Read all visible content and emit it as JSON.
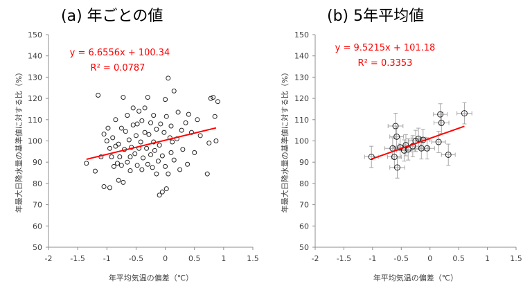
{
  "chart_data": [
    {
      "type": "scatter",
      "panel_title": "(a) 年ごとの値",
      "xlabel": "年平均気温の偏差（℃）",
      "ylabel": "年最大日降水量の基準値に対する比（%）",
      "xlim": [
        -2,
        1.5
      ],
      "ylim": [
        50,
        150
      ],
      "xticks": [
        "-2",
        "-1.5",
        "-1",
        "-0.5",
        "0",
        "0.5",
        "1",
        "1.5"
      ],
      "yticks": [
        "50",
        "60",
        "70",
        "80",
        "90",
        "100",
        "110",
        "120",
        "130",
        "140",
        "150"
      ],
      "grid": false,
      "equation": "y = 6.6556x + 100.34",
      "r2": "R² = 0.0787",
      "trendline": {
        "slope": 6.6556,
        "intercept": 100.34,
        "x_range": [
          -1.35,
          0.87
        ],
        "color": "#ff0000"
      },
      "marker": "open-circle",
      "points": [
        [
          -1.35,
          89.5
        ],
        [
          -1.2,
          85.8
        ],
        [
          -1.15,
          121.5
        ],
        [
          -1.1,
          92.5
        ],
        [
          -1.05,
          78.5
        ],
        [
          -1.05,
          103.2
        ],
        [
          -1.0,
          100.0
        ],
        [
          -0.98,
          106.0
        ],
        [
          -0.95,
          96.5
        ],
        [
          -0.95,
          78.0
        ],
        [
          -0.92,
          92.5
        ],
        [
          -0.9,
          101.5
        ],
        [
          -0.88,
          88.0
        ],
        [
          -0.85,
          97.5
        ],
        [
          -0.85,
          110.0
        ],
        [
          -0.82,
          89.5
        ],
        [
          -0.8,
          98.5
        ],
        [
          -0.8,
          81.5
        ],
        [
          -0.78,
          92.5
        ],
        [
          -0.75,
          88.5
        ],
        [
          -0.75,
          106.0
        ],
        [
          -0.72,
          120.5
        ],
        [
          -0.72,
          80.5
        ],
        [
          -0.7,
          96.0
        ],
        [
          -0.68,
          104.5
        ],
        [
          -0.65,
          90.0
        ],
        [
          -0.65,
          112.0
        ],
        [
          -0.62,
          100.5
        ],
        [
          -0.6,
          92.5
        ],
        [
          -0.6,
          86.0
        ],
        [
          -0.58,
          97.0
        ],
        [
          -0.55,
          107.5
        ],
        [
          -0.55,
          115.5
        ],
        [
          -0.52,
          94.0
        ],
        [
          -0.5,
          102.5
        ],
        [
          -0.48,
          88.5
        ],
        [
          -0.48,
          108.0
        ],
        [
          -0.45,
          96.5
        ],
        [
          -0.45,
          114.0
        ],
        [
          -0.42,
          99.5
        ],
        [
          -0.4,
          86.5
        ],
        [
          -0.4,
          109.5
        ],
        [
          -0.38,
          92.0
        ],
        [
          -0.35,
          104.0
        ],
        [
          -0.35,
          115.5
        ],
        [
          -0.32,
          96.5
        ],
        [
          -0.3,
          120.5
        ],
        [
          -0.3,
          89.0
        ],
        [
          -0.28,
          103.0
        ],
        [
          -0.25,
          93.5
        ],
        [
          -0.25,
          108.5
        ],
        [
          -0.22,
          87.5
        ],
        [
          -0.2,
          99.5
        ],
        [
          -0.2,
          112.0
        ],
        [
          -0.18,
          95.5
        ],
        [
          -0.15,
          84.5
        ],
        [
          -0.15,
          105.5
        ],
        [
          -0.12,
          90.5
        ],
        [
          -0.1,
          74.5
        ],
        [
          -0.1,
          98.0
        ],
        [
          -0.08,
          108.0
        ],
        [
          -0.05,
          93.0
        ],
        [
          -0.05,
          76.0
        ],
        [
          -0.02,
          104.0
        ],
        [
          0.0,
          88.0
        ],
        [
          0.0,
          119.5
        ],
        [
          0.02,
          111.5
        ],
        [
          0.02,
          77.5
        ],
        [
          0.05,
          84.5
        ],
        [
          0.05,
          129.5
        ],
        [
          0.08,
          101.5
        ],
        [
          0.1,
          94.5
        ],
        [
          0.1,
          107.0
        ],
        [
          0.12,
          99.5
        ],
        [
          0.15,
          123.5
        ],
        [
          0.15,
          91.0
        ],
        [
          0.2,
          101.0
        ],
        [
          0.22,
          113.5
        ],
        [
          0.25,
          86.5
        ],
        [
          0.28,
          105.0
        ],
        [
          0.3,
          96.0
        ],
        [
          0.35,
          108.5
        ],
        [
          0.38,
          89.0
        ],
        [
          0.4,
          112.5
        ],
        [
          0.45,
          104.0
        ],
        [
          0.5,
          94.5
        ],
        [
          0.55,
          110.0
        ],
        [
          0.6,
          102.5
        ],
        [
          0.72,
          84.5
        ],
        [
          0.75,
          99.0
        ],
        [
          0.78,
          120.0
        ],
        [
          0.82,
          120.5
        ],
        [
          0.85,
          111.5
        ],
        [
          0.87,
          100.0
        ],
        [
          0.9,
          118.5
        ]
      ]
    },
    {
      "type": "scatter",
      "panel_title": "(b) 5年平均値",
      "xlabel": "年平均気温の偏差（℃）",
      "ylabel": "年最大日降水量の基準値に対する比（%）",
      "xlim": [
        -2,
        1.5
      ],
      "ylim": [
        50,
        150
      ],
      "xticks": [
        "-2",
        "-1.5",
        "-1",
        "-0.5",
        "0",
        "0.5",
        "1",
        "1.5"
      ],
      "yticks": [
        "50",
        "60",
        "70",
        "80",
        "90",
        "100",
        "110",
        "120",
        "130",
        "140",
        "150"
      ],
      "grid": false,
      "equation": "y = 9.5215x + 101.18",
      "r2": "R² = 0.3353",
      "trendline": {
        "slope": 9.5215,
        "intercept": 101.18,
        "x_range": [
          -1.02,
          0.6
        ],
        "color": "#ff0000"
      },
      "marker": "open-circle-with-error-bars",
      "points": [
        {
          "x": -1.02,
          "y": 92.5,
          "xerr": 0.12,
          "yerr": 5
        },
        {
          "x": -0.65,
          "y": 96.5,
          "xerr": 0.14,
          "yerr": 5
        },
        {
          "x": -0.62,
          "y": 92.5,
          "xerr": 0.12,
          "yerr": 5
        },
        {
          "x": -0.6,
          "y": 107.0,
          "xerr": 0.13,
          "yerr": 6
        },
        {
          "x": -0.58,
          "y": 102.0,
          "xerr": 0.12,
          "yerr": 5
        },
        {
          "x": -0.57,
          "y": 87.5,
          "xerr": 0.13,
          "yerr": 5
        },
        {
          "x": -0.52,
          "y": 97.0,
          "xerr": 0.12,
          "yerr": 5
        },
        {
          "x": -0.45,
          "y": 95.5,
          "xerr": 0.13,
          "yerr": 5
        },
        {
          "x": -0.42,
          "y": 98.0,
          "xerr": 0.12,
          "yerr": 5
        },
        {
          "x": -0.38,
          "y": 96.0,
          "xerr": 0.12,
          "yerr": 5
        },
        {
          "x": -0.3,
          "y": 97.5,
          "xerr": 0.13,
          "yerr": 5
        },
        {
          "x": -0.25,
          "y": 100.0,
          "xerr": 0.12,
          "yerr": 5
        },
        {
          "x": -0.2,
          "y": 101.0,
          "xerr": 0.13,
          "yerr": 5
        },
        {
          "x": -0.15,
          "y": 96.5,
          "xerr": 0.12,
          "yerr": 5
        },
        {
          "x": -0.12,
          "y": 100.5,
          "xerr": 0.12,
          "yerr": 5
        },
        {
          "x": -0.05,
          "y": 96.5,
          "xerr": 0.13,
          "yerr": 5
        },
        {
          "x": 0.15,
          "y": 99.5,
          "xerr": 0.12,
          "yerr": 5
        },
        {
          "x": 0.18,
          "y": 112.5,
          "xerr": 0.12,
          "yerr": 5
        },
        {
          "x": 0.2,
          "y": 108.5,
          "xerr": 0.13,
          "yerr": 5
        },
        {
          "x": 0.32,
          "y": 93.5,
          "xerr": 0.12,
          "yerr": 5
        },
        {
          "x": 0.6,
          "y": 113.0,
          "xerr": 0.13,
          "yerr": 5
        }
      ]
    }
  ]
}
